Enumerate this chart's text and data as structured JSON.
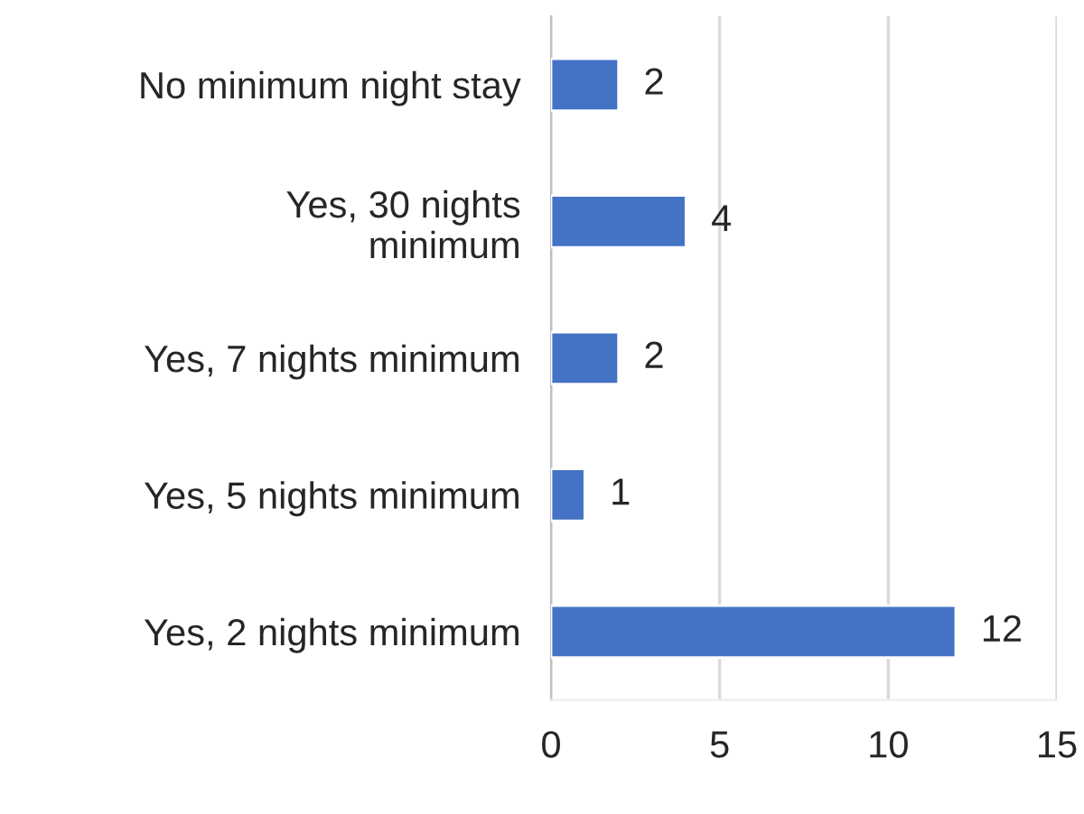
{
  "chart_data": {
    "type": "bar",
    "orientation": "horizontal",
    "categories": [
      "No minimum night stay",
      "Yes, 30 nights\nminimum",
      "Yes, 7 nights minimum",
      "Yes, 5 nights minimum",
      "Yes, 2 nights minimum"
    ],
    "values": [
      2,
      4,
      2,
      1,
      12
    ],
    "color": "#4472c4",
    "xlim": [
      0,
      15
    ],
    "xticks": [
      0,
      5,
      10,
      15
    ],
    "grid": "x",
    "data_labels": true
  }
}
